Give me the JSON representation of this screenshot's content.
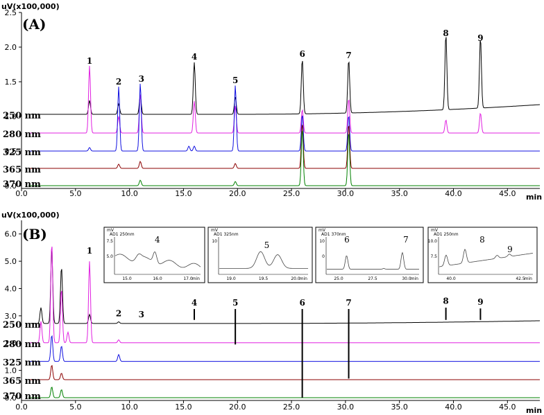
{
  "chart_data": [
    {
      "panel": "(A)",
      "type": "line",
      "y_unit_label": "uV(x100,000)",
      "x_unit_label": "min",
      "xlim": [
        0,
        48
      ],
      "ylim": [
        0,
        2.5
      ],
      "x_ticks": [
        "0.0",
        "5.0",
        "10.0",
        "15.0",
        "20.0",
        "25.0",
        "30.0",
        "35.0",
        "40.0",
        "45.0"
      ],
      "y_ticks": [
        "0.0",
        "0.5",
        "1.0",
        "1.5",
        "2.0",
        "2.5"
      ],
      "traces": [
        {
          "name": "250 nm",
          "color": "#000000",
          "baseline": 1.03,
          "drift_end": 1.17,
          "peaks": [
            {
              "x": 6.3,
              "y": 1.23
            },
            {
              "x": 9.0,
              "y": 1.18
            },
            {
              "x": 11.0,
              "y": 1.3
            },
            {
              "x": 16.0,
              "y": 1.78
            },
            {
              "x": 19.8,
              "y": 1.28
            },
            {
              "x": 26.0,
              "y": 1.82
            },
            {
              "x": 30.3,
              "y": 1.8
            },
            {
              "x": 39.3,
              "y": 2.12
            },
            {
              "x": 42.5,
              "y": 2.05
            }
          ]
        },
        {
          "name": "280 nm",
          "color": "#e020e0",
          "baseline": 0.76,
          "drift_end": 0.76,
          "peaks": [
            {
              "x": 6.3,
              "y": 1.73
            },
            {
              "x": 9.0,
              "y": 1.0
            },
            {
              "x": 11.0,
              "y": 1.32
            },
            {
              "x": 16.0,
              "y": 1.22
            },
            {
              "x": 19.8,
              "y": 1.15
            },
            {
              "x": 26.0,
              "y": 1.1
            },
            {
              "x": 30.3,
              "y": 1.26
            },
            {
              "x": 39.3,
              "y": 0.95
            },
            {
              "x": 42.5,
              "y": 1.05
            }
          ]
        },
        {
          "name": "325 nm",
          "color": "#1010e0",
          "baseline": 0.5,
          "drift_end": 0.5,
          "peaks": [
            {
              "x": 6.3,
              "y": 0.55
            },
            {
              "x": 9.0,
              "y": 1.43
            },
            {
              "x": 11.0,
              "y": 1.48
            },
            {
              "x": 15.5,
              "y": 0.57
            },
            {
              "x": 16.0,
              "y": 0.57
            },
            {
              "x": 19.8,
              "y": 1.45
            },
            {
              "x": 26.0,
              "y": 1.03
            },
            {
              "x": 30.3,
              "y": 1.02
            }
          ]
        },
        {
          "name": "365 nm",
          "color": "#8b0000",
          "baseline": 0.25,
          "drift_end": 0.25,
          "peaks": [
            {
              "x": 9.0,
              "y": 0.31
            },
            {
              "x": 11.0,
              "y": 0.35
            },
            {
              "x": 19.8,
              "y": 0.32
            },
            {
              "x": 26.0,
              "y": 0.9
            },
            {
              "x": 30.3,
              "y": 0.89
            }
          ]
        },
        {
          "name": "370 nm",
          "color": "#008000",
          "baseline": 0.0,
          "drift_end": 0.0,
          "peaks": [
            {
              "x": 11.0,
              "y": 0.08
            },
            {
              "x": 19.8,
              "y": 0.06
            },
            {
              "x": 26.0,
              "y": 0.82
            },
            {
              "x": 30.3,
              "y": 0.78
            }
          ]
        }
      ],
      "peak_labels": [
        {
          "text": "1",
          "x": 6.3,
          "y": 1.76
        },
        {
          "text": "2",
          "x": 9.0,
          "y": 1.46
        },
        {
          "text": "3",
          "x": 11.1,
          "y": 1.5
        },
        {
          "text": "4",
          "x": 16.0,
          "y": 1.82
        },
        {
          "text": "5",
          "x": 19.8,
          "y": 1.48
        },
        {
          "text": "6",
          "x": 26.0,
          "y": 1.86
        },
        {
          "text": "7",
          "x": 30.3,
          "y": 1.84
        },
        {
          "text": "8",
          "x": 39.3,
          "y": 2.16
        },
        {
          "text": "9",
          "x": 42.5,
          "y": 2.09
        }
      ]
    },
    {
      "panel": "(B)",
      "type": "line",
      "y_unit_label": "uV(x100,000)",
      "x_unit_label": "min",
      "xlim": [
        0,
        48
      ],
      "ylim": [
        0,
        6.5
      ],
      "x_ticks": [
        "0.0",
        "5.0",
        "10.0",
        "15.0",
        "20.0",
        "25.0",
        "30.0",
        "35.0",
        "40.0",
        "45.0"
      ],
      "y_ticks": [
        "0.0",
        "1.0",
        "2.0",
        "3.0",
        "4.0",
        "5.0",
        "6.0"
      ],
      "traces": [
        {
          "name": "250 nm",
          "color": "#000000",
          "baseline": 2.72,
          "drift_end": 2.82,
          "peaks": [
            {
              "x": 1.8,
              "y": 3.3
            },
            {
              "x": 2.8,
              "y": 5.5
            },
            {
              "x": 3.7,
              "y": 4.8
            },
            {
              "x": 6.3,
              "y": 3.05
            },
            {
              "x": 9.0,
              "y": 2.78
            }
          ]
        },
        {
          "name": "280 nm",
          "color": "#e020e0",
          "baseline": 2.01,
          "drift_end": 2.01,
          "peaks": [
            {
              "x": 1.8,
              "y": 2.8
            },
            {
              "x": 2.8,
              "y": 5.7
            },
            {
              "x": 3.7,
              "y": 4.0
            },
            {
              "x": 4.3,
              "y": 2.4
            },
            {
              "x": 6.3,
              "y": 5.0
            },
            {
              "x": 9.0,
              "y": 2.12
            }
          ]
        },
        {
          "name": "325 nm",
          "color": "#1010e0",
          "baseline": 1.33,
          "drift_end": 1.33,
          "peaks": [
            {
              "x": 2.8,
              "y": 2.3
            },
            {
              "x": 3.7,
              "y": 1.9
            },
            {
              "x": 9.0,
              "y": 1.58
            }
          ]
        },
        {
          "name": "365 nm",
          "color": "#8b0000",
          "baseline": 0.66,
          "drift_end": 0.66,
          "peaks": [
            {
              "x": 2.8,
              "y": 1.2
            },
            {
              "x": 3.7,
              "y": 0.9
            }
          ]
        },
        {
          "name": "370 nm",
          "color": "#008000",
          "baseline": 0.0,
          "drift_end": 0.0,
          "peaks": [
            {
              "x": 2.8,
              "y": 0.4
            },
            {
              "x": 3.7,
              "y": 0.3
            }
          ]
        }
      ],
      "peak_labels": [
        {
          "text": "1",
          "x": 6.3,
          "y": 5.28
        },
        {
          "text": "2",
          "x": 9.0,
          "y": 2.98
        },
        {
          "text": "3",
          "x": 11.1,
          "y": 2.94
        },
        {
          "text": "4",
          "x": 16.0,
          "y": 3.38
        },
        {
          "text": "5",
          "x": 19.8,
          "y": 3.38
        },
        {
          "text": "6",
          "x": 26.0,
          "y": 3.38
        },
        {
          "text": "7",
          "x": 30.3,
          "y": 3.38
        },
        {
          "text": "8",
          "x": 39.3,
          "y": 3.44
        },
        {
          "text": "9",
          "x": 42.5,
          "y": 3.4
        }
      ],
      "insets": [
        {
          "trace_tag": "AD1 250nm",
          "y_unit": "mV",
          "x_ticks": [
            "15.0",
            "16.0",
            "17.0"
          ],
          "x_unit": "min",
          "y_ticks": [
            "7.5",
            "5.0"
          ],
          "peak": "4"
        },
        {
          "trace_tag": "AD1 325nm",
          "y_unit": "mV",
          "x_ticks": [
            "19.0",
            "19.5",
            "20.0"
          ],
          "x_unit": "min",
          "y_ticks": [
            "10"
          ],
          "peak": "5"
        },
        {
          "trace_tag": "AD1 370nm",
          "y_unit": "mV",
          "x_ticks": [
            "25.0",
            "27.5",
            "30.0"
          ],
          "x_unit": "min",
          "y_ticks": [
            "10",
            "0"
          ],
          "peak_a": "6",
          "peak_b": "7"
        },
        {
          "trace_tag": "AD1 250nm",
          "y_unit": "mV",
          "x_ticks": [
            "40.0",
            "42.5"
          ],
          "x_unit": "min",
          "y_ticks": [
            "10.0",
            "7.5"
          ],
          "peak_a": "8",
          "peak_b": "9"
        }
      ]
    }
  ]
}
